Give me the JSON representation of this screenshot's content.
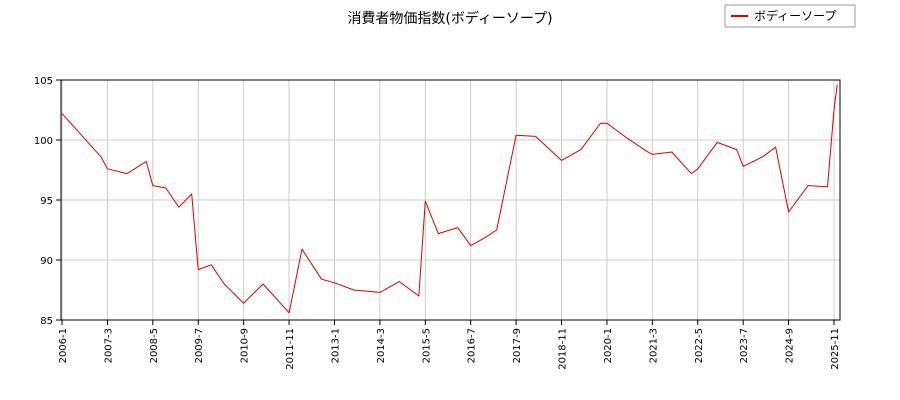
{
  "chart_data": {
    "type": "line",
    "title": "消費者物価指数(ボディーソープ)",
    "xlabel": "",
    "ylabel": "",
    "ylim": [
      85,
      105
    ],
    "yticks": [
      85,
      90,
      95,
      100,
      105
    ],
    "x_tick_labels": [
      "2006-1",
      "2007-3",
      "2008-5",
      "2009-7",
      "2010-9",
      "2011-11",
      "2013-1",
      "2014-3",
      "2015-5",
      "2016-7",
      "2017-9",
      "2018-11",
      "2020-1",
      "2021-3",
      "2022-5",
      "2023-7",
      "2024-9",
      "2025-11"
    ],
    "grid": true,
    "legend": {
      "position": "top-right"
    },
    "series": [
      {
        "name": "ボディーソープ",
        "color": "#e00000",
        "x": [
          "2006-1",
          "2006-7",
          "2007-1",
          "2007-3",
          "2007-9",
          "2008-3",
          "2008-5",
          "2008-9",
          "2009-1",
          "2009-5",
          "2009-7",
          "2009-11",
          "2010-3",
          "2010-9",
          "2011-3",
          "2011-11",
          "2012-3",
          "2012-9",
          "2013-1",
          "2013-7",
          "2014-3",
          "2014-9",
          "2015-3",
          "2015-5",
          "2015-9",
          "2016-3",
          "2016-7",
          "2016-11",
          "2017-3",
          "2017-9",
          "2018-3",
          "2018-11",
          "2019-5",
          "2019-11",
          "2020-1",
          "2020-7",
          "2021-1",
          "2021-3",
          "2021-9",
          "2022-3",
          "2022-5",
          "2022-11",
          "2023-5",
          "2023-7",
          "2024-1",
          "2024-5",
          "2024-9",
          "2025-3",
          "2025-9",
          "2025-11",
          "2025-12"
        ],
        "values": [
          102.2,
          100.4,
          98.6,
          97.6,
          97.2,
          98.2,
          96.2,
          96.0,
          94.4,
          95.5,
          89.2,
          89.6,
          88.0,
          86.4,
          88.0,
          85.6,
          90.9,
          88.4,
          88.1,
          87.5,
          87.3,
          88.2,
          87.0,
          94.9,
          92.2,
          92.7,
          91.2,
          91.8,
          92.5,
          100.4,
          100.3,
          98.3,
          99.2,
          101.4,
          101.4,
          100.2,
          99.1,
          98.8,
          99.0,
          97.2,
          97.6,
          99.8,
          99.2,
          97.8,
          98.6,
          99.4,
          94.0,
          96.2,
          96.1,
          102.5,
          104.6
        ]
      }
    ]
  }
}
